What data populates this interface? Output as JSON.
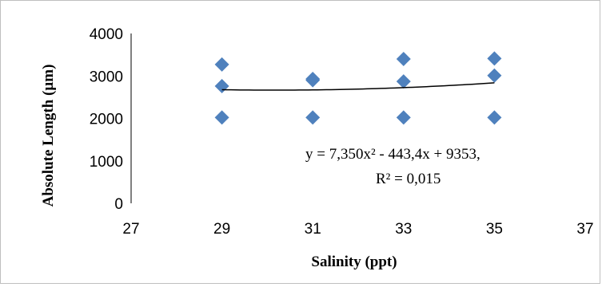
{
  "chart_data": {
    "type": "scatter",
    "xlabel": "Salinity (ppt)",
    "ylabel": "Absolute Length (µm)",
    "xlim": [
      27,
      37
    ],
    "ylim": [
      0,
      4000
    ],
    "x_ticks": [
      "27",
      "29",
      "31",
      "33",
      "35",
      "37"
    ],
    "y_ticks": [
      "0",
      "1000",
      "2000",
      "3000",
      "4000"
    ],
    "grid": false,
    "legend": "none",
    "marker": "diamond",
    "marker_color": "#4f81bd",
    "series": [
      {
        "points": [
          {
            "x": 29,
            "y": 3270
          },
          {
            "x": 29,
            "y": 2760
          },
          {
            "x": 29,
            "y": 2020
          },
          {
            "x": 31,
            "y": 2930
          },
          {
            "x": 31,
            "y": 2900
          },
          {
            "x": 31,
            "y": 2020
          },
          {
            "x": 33,
            "y": 3400
          },
          {
            "x": 33,
            "y": 2870
          },
          {
            "x": 33,
            "y": 2020
          },
          {
            "x": 35,
            "y": 3410
          },
          {
            "x": 35,
            "y": 3010
          },
          {
            "x": 35,
            "y": 2020
          }
        ]
      }
    ],
    "trendline": {
      "type": "polynomial",
      "order": 2,
      "coefficients": [
        7.35,
        -443.4,
        9353
      ],
      "x_range": [
        29,
        35
      ],
      "equation": "y = 7,350x² - 443,4x + 9353,",
      "r_squared": "R² = 0,015"
    }
  }
}
